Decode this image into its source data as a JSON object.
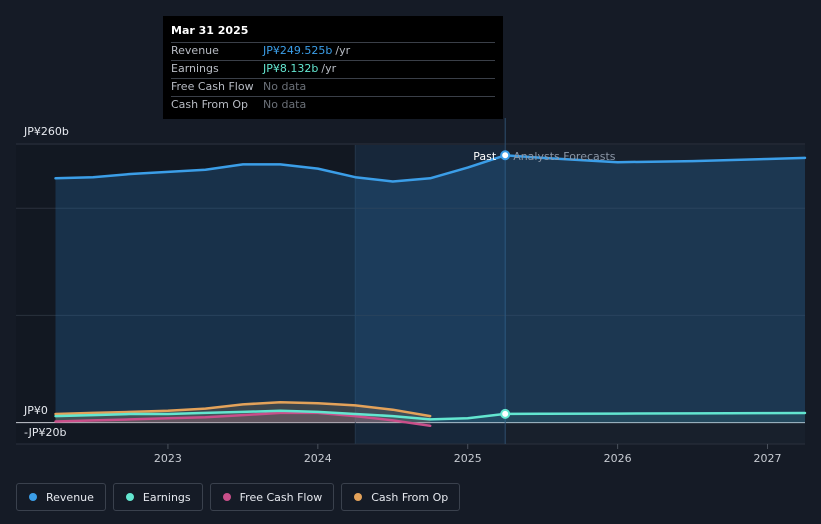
{
  "tooltip": {
    "date": "Mar 31 2025",
    "rows": [
      {
        "label": "Revenue",
        "value": "JP¥249.525b",
        "unit": "/yr",
        "color": "#3b9ee8"
      },
      {
        "label": "Earnings",
        "value": "JP¥8.132b",
        "unit": "/yr",
        "color": "#63e6d0"
      },
      {
        "label": "Free Cash Flow",
        "value": "No data",
        "unit": "",
        "color": "#6b7078"
      },
      {
        "label": "Cash From Op",
        "value": "No data",
        "unit": "",
        "color": "#6b7078"
      }
    ]
  },
  "legend": [
    {
      "label": "Revenue",
      "color": "#3b9ee8"
    },
    {
      "label": "Earnings",
      "color": "#63e6d0"
    },
    {
      "label": "Free Cash Flow",
      "color": "#c94f8a"
    },
    {
      "label": "Cash From Op",
      "color": "#e3a25a"
    }
  ],
  "chart_data": {
    "type": "line",
    "ytick_labels": [
      "JP¥260b",
      "JP¥0",
      "-JP¥20b"
    ],
    "yticks": [
      260,
      0,
      -20
    ],
    "ylim": [
      -20,
      260
    ],
    "xlim": [
      2022.2,
      2027.25
    ],
    "xticks": [
      2023,
      2024,
      2025,
      2026,
      2027
    ],
    "xtick_labels": [
      "2023",
      "2024",
      "2025",
      "2026",
      "2027"
    ],
    "past_label": "Past",
    "forecast_label": "Analysts Forecasts",
    "divider_x": 2025.25,
    "highlight_start_x": 2024.25,
    "series": [
      {
        "name": "Revenue",
        "color": "#3b9ee8",
        "x": [
          2022.25,
          2022.5,
          2022.75,
          2023.0,
          2023.25,
          2023.5,
          2023.75,
          2024.0,
          2024.25,
          2024.5,
          2024.75,
          2025.0,
          2025.25,
          2025.5,
          2026.0,
          2026.5,
          2027.0,
          2027.25
        ],
        "y": [
          228,
          229,
          232,
          234,
          236,
          241,
          241,
          237,
          229,
          225,
          228,
          238,
          249.5,
          247,
          243,
          244,
          246,
          247
        ]
      },
      {
        "name": "Earnings",
        "color": "#63e6d0",
        "x": [
          2022.25,
          2022.5,
          2022.75,
          2023.0,
          2023.25,
          2023.5,
          2023.75,
          2024.0,
          2024.25,
          2024.5,
          2024.75,
          2025.0,
          2025.25,
          2025.5,
          2026.0,
          2026.5,
          2027.0,
          2027.25
        ],
        "y": [
          6,
          7,
          8,
          8,
          9,
          10,
          11,
          10,
          8,
          6,
          3,
          4,
          8.1,
          8.2,
          8.4,
          8.6,
          8.8,
          8.9
        ]
      },
      {
        "name": "Free Cash Flow",
        "color": "#c94f8a",
        "x": [
          2022.25,
          2022.5,
          2022.75,
          2023.0,
          2023.25,
          2023.5,
          2023.75,
          2024.0,
          2024.25,
          2024.5,
          2024.75
        ],
        "y": [
          1,
          2,
          3,
          4,
          5,
          7,
          9,
          9,
          6,
          2,
          -3
        ]
      },
      {
        "name": "Cash From Op",
        "color": "#e3a25a",
        "x": [
          2022.25,
          2022.5,
          2022.75,
          2023.0,
          2023.25,
          2023.5,
          2023.75,
          2024.0,
          2024.25,
          2024.5,
          2024.75
        ],
        "y": [
          8,
          9,
          10,
          11,
          13,
          17,
          19,
          18,
          16,
          12,
          6
        ]
      }
    ]
  }
}
